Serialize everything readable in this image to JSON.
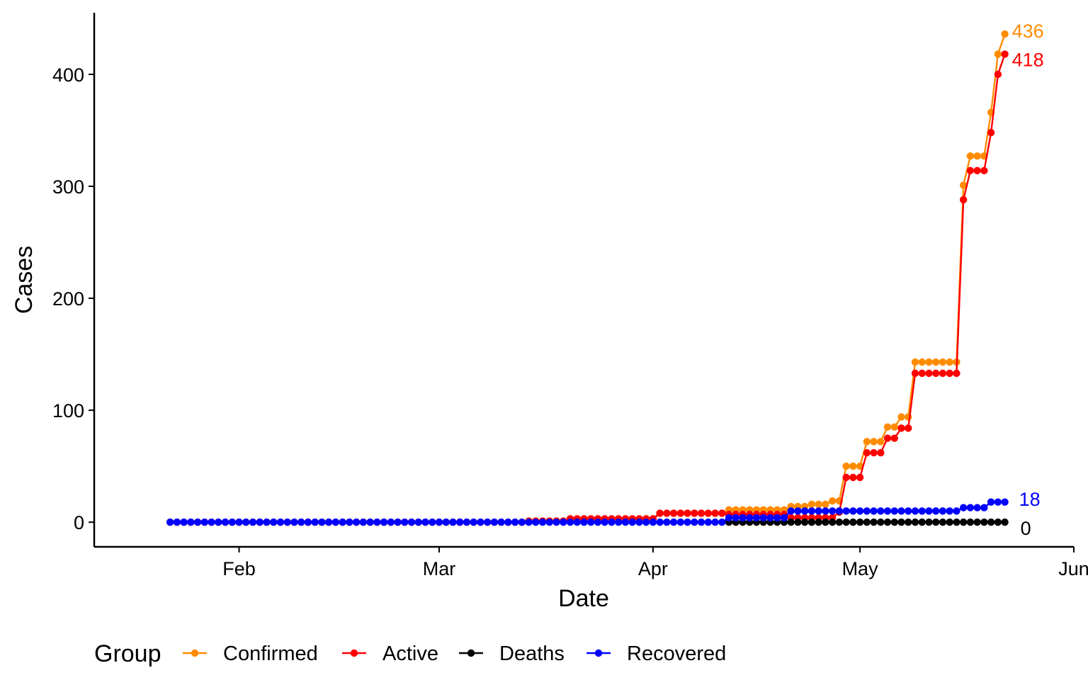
{
  "chart_data": {
    "type": "line",
    "xlabel": "Date",
    "ylabel": "Cases",
    "x_ticks": [
      "Feb",
      "Mar",
      "Apr",
      "May",
      "Jun"
    ],
    "x_tick_dates": [
      "2020-02-01",
      "2020-03-01",
      "2020-04-01",
      "2020-05-01",
      "2020-06-01"
    ],
    "y_ticks": [
      "0",
      "100",
      "200",
      "300",
      "400"
    ],
    "y_tick_values": [
      0,
      100,
      200,
      300,
      400
    ],
    "xlim": [
      "2020-01-11",
      "2020-06-01"
    ],
    "ylim": [
      -22,
      455
    ],
    "grid": false,
    "legend": {
      "title": "Group",
      "position": "bottom",
      "entries": [
        "Confirmed",
        "Active",
        "Deaths",
        "Recovered"
      ]
    },
    "series": [
      {
        "name": "Confirmed",
        "color": "#FF8C00",
        "end_label": "436",
        "points": [
          [
            "2020-01-22",
            0
          ],
          [
            "2020-03-13",
            0
          ],
          [
            "2020-03-14",
            1
          ],
          [
            "2020-03-19",
            1
          ],
          [
            "2020-03-20",
            3
          ],
          [
            "2020-04-01",
            3
          ],
          [
            "2020-04-02",
            8
          ],
          [
            "2020-04-11",
            8
          ],
          [
            "2020-04-12",
            11
          ],
          [
            "2020-04-20",
            11
          ],
          [
            "2020-04-21",
            14
          ],
          [
            "2020-04-23",
            14
          ],
          [
            "2020-04-24",
            16
          ],
          [
            "2020-04-26",
            16
          ],
          [
            "2020-04-27",
            19
          ],
          [
            "2020-04-28",
            19
          ],
          [
            "2020-04-29",
            50
          ],
          [
            "2020-05-01",
            50
          ],
          [
            "2020-05-02",
            72
          ],
          [
            "2020-05-04",
            72
          ],
          [
            "2020-05-05",
            85
          ],
          [
            "2020-05-06",
            85
          ],
          [
            "2020-05-07",
            94
          ],
          [
            "2020-05-08",
            94
          ],
          [
            "2020-05-09",
            143
          ],
          [
            "2020-05-15",
            143
          ],
          [
            "2020-05-16",
            301
          ],
          [
            "2020-05-17",
            327
          ],
          [
            "2020-05-19",
            327
          ],
          [
            "2020-05-20",
            366
          ],
          [
            "2020-05-21",
            418
          ],
          [
            "2020-05-22",
            436
          ]
        ]
      },
      {
        "name": "Active",
        "color": "#FF0000",
        "end_label": "418",
        "points": [
          [
            "2020-01-22",
            0
          ],
          [
            "2020-03-13",
            0
          ],
          [
            "2020-03-14",
            1
          ],
          [
            "2020-03-19",
            1
          ],
          [
            "2020-03-20",
            3
          ],
          [
            "2020-04-01",
            3
          ],
          [
            "2020-04-02",
            8
          ],
          [
            "2020-04-11",
            8
          ],
          [
            "2020-04-12",
            7
          ],
          [
            "2020-04-20",
            7
          ],
          [
            "2020-04-21",
            4
          ],
          [
            "2020-04-27",
            4
          ],
          [
            "2020-04-28",
            9
          ],
          [
            "2020-04-29",
            40
          ],
          [
            "2020-05-01",
            40
          ],
          [
            "2020-05-02",
            62
          ],
          [
            "2020-05-04",
            62
          ],
          [
            "2020-05-05",
            75
          ],
          [
            "2020-05-06",
            75
          ],
          [
            "2020-05-07",
            84
          ],
          [
            "2020-05-08",
            84
          ],
          [
            "2020-05-09",
            133
          ],
          [
            "2020-05-15",
            133
          ],
          [
            "2020-05-16",
            288
          ],
          [
            "2020-05-17",
            314
          ],
          [
            "2020-05-19",
            314
          ],
          [
            "2020-05-20",
            348
          ],
          [
            "2020-05-21",
            400
          ],
          [
            "2020-05-22",
            418
          ]
        ]
      },
      {
        "name": "Deaths",
        "color": "#000000",
        "end_label": "0",
        "points": [
          [
            "2020-04-12",
            0
          ],
          [
            "2020-05-22",
            0
          ]
        ]
      },
      {
        "name": "Recovered",
        "color": "#0000FF",
        "end_label": "18",
        "points": [
          [
            "2020-01-22",
            0
          ],
          [
            "2020-04-11",
            0
          ],
          [
            "2020-04-12",
            4
          ],
          [
            "2020-04-20",
            4
          ],
          [
            "2020-04-21",
            10
          ],
          [
            "2020-05-15",
            10
          ],
          [
            "2020-05-16",
            13
          ],
          [
            "2020-05-19",
            13
          ],
          [
            "2020-05-20",
            18
          ],
          [
            "2020-05-22",
            18
          ]
        ]
      }
    ]
  }
}
